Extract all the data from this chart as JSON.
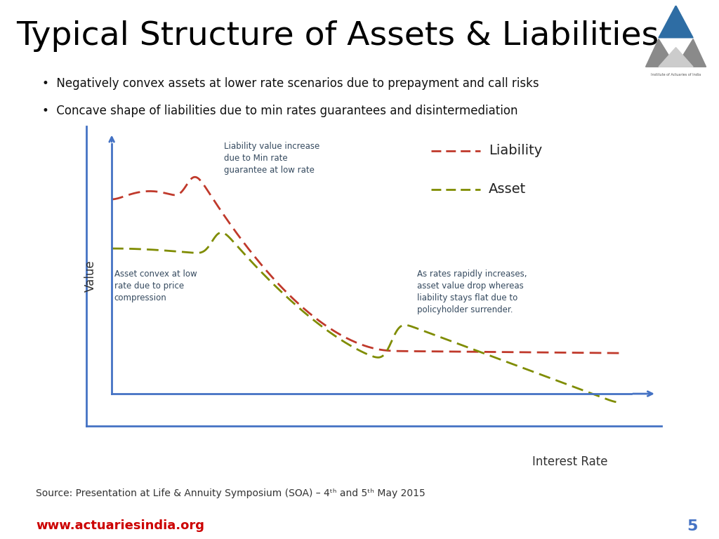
{
  "title": "Typical Structure of Assets & Liabilities",
  "title_fontsize": 34,
  "title_color": "#000000",
  "red_line_color": "#c0392b",
  "green_line_color": "#7f8c00",
  "axis_color": "#4472c4",
  "bullet1": "Negatively convex assets at lower rate scenarios due to prepayment and call risks",
  "bullet2": "Concave shape of liabilities due to min rates guarantees and disintermediation",
  "ylabel": "Value",
  "xlabel": "Interest Rate",
  "annotation1": "Liability value increase\ndue to Min rate\nguarantee at low rate",
  "annotation2": "Asset convex at low\nrate due to price\ncompression",
  "annotation3": "As rates rapidly increases,\nasset value drop whereas\nliability stays flat due to\npolicyholder surrender.",
  "legend_liability": "Liability",
  "legend_asset": "Asset",
  "source_text": "Source: Presentation at Life & Annuity Symposium (SOA) – 4",
  "source_end": " May 2015",
  "website": "www.actuariesindia.org",
  "page_num": "5",
  "header_line_color": "#cc0000",
  "background_color": "#ffffff",
  "annotation_color": "#34495e",
  "annotation_fontsize": 8.5,
  "bullet_fontsize": 12,
  "footer_fontsize": 10,
  "website_fontsize": 13,
  "pagenum_fontsize": 16
}
